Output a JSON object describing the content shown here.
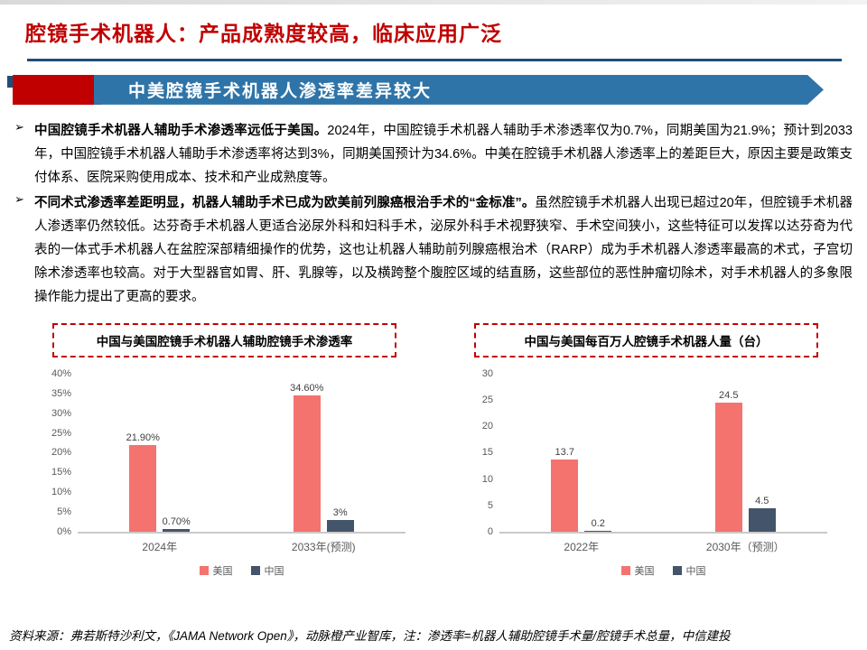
{
  "slide": {
    "title": "腔镜手术机器人：产品成熟度较高，临床应用广泛",
    "banner": "中美腔镜手术机器人渗透率差异较大",
    "bullet_marker": "➢",
    "bullets": [
      {
        "bold": "中国腔镜手术机器人辅助手术渗透率远低于美国。",
        "text": "2024年，中国腔镜手术机器人辅助手术渗透率仅为0.7%，同期美国为21.9%；预计到2033年，中国腔镜手术机器人辅助手术渗透率将达到3%，同期美国预计为34.6%。中美在腔镜手术机器人渗透率上的差距巨大，原因主要是政策支付体系、医院采购使用成本、技术和产业成熟度等。"
      },
      {
        "bold": "不同术式渗透率差距明显，机器人辅助手术已成为欧美前列腺癌根治手术的“金标准”。",
        "text": "虽然腔镜手术机器人出现已超过20年，但腔镜手术机器人渗透率仍然较低。达芬奇手术机器人更适合泌尿外科和妇科手术，泌尿外科手术视野狭窄、手术空间狭小，这些特征可以发挥以达芬奇为代表的一体式手术机器人在盆腔深部精细操作的优势，这也让机器人辅助前列腺癌根治术（RARP）成为手术机器人渗透率最高的术式，子宫切除术渗透率也较高。对于大型器官如胃、肝、乳腺等，以及横跨整个腹腔区域的结直肠，这些部位的恶性肿瘤切除术，对手术机器人的多象限操作能力提出了更高的要求。"
      }
    ],
    "source": "资料来源：弗若斯特沙利文，《JAMA Network Open》，动脉橙产业智库，注：渗透率=机器人辅助腔镜手术量/腔镜手术总量，中信建投"
  },
  "colors": {
    "title_red": "#C00000",
    "banner_blue": "#2E74A8",
    "navy_rule": "#1F4E79",
    "us_bar": "#F4736F",
    "cn_bar": "#44546A"
  },
  "chart_data": [
    {
      "type": "bar",
      "title": "中国与美国腔镜手术机器人辅助腔镜手术渗透率",
      "categories": [
        "2024年",
        "2033年(预测)"
      ],
      "series": [
        {
          "name": "美国",
          "values": [
            21.9,
            34.6
          ],
          "labels": [
            "21.90%",
            "34.60%"
          ],
          "color": "#F4736F"
        },
        {
          "name": "中国",
          "values": [
            0.7,
            3
          ],
          "labels": [
            "0.70%",
            "3%"
          ],
          "color": "#44546A"
        }
      ],
      "ylim": [
        0,
        40
      ],
      "yticks": [
        "0%",
        "5%",
        "10%",
        "15%",
        "20%",
        "25%",
        "30%",
        "35%",
        "40%"
      ],
      "grid": false,
      "legend_position": "bottom"
    },
    {
      "type": "bar",
      "title": "中国与美国每百万人腔镜手术机器人量（台）",
      "categories": [
        "2022年",
        "2030年（预测）"
      ],
      "series": [
        {
          "name": "美国",
          "values": [
            13.7,
            24.5
          ],
          "labels": [
            "13.7",
            "24.5"
          ],
          "color": "#F4736F"
        },
        {
          "name": "中国",
          "values": [
            0.2,
            4.5
          ],
          "labels": [
            "0.2",
            "4.5"
          ],
          "color": "#44546A"
        }
      ],
      "ylim": [
        0,
        30
      ],
      "yticks": [
        "0",
        "5",
        "10",
        "15",
        "20",
        "25",
        "30"
      ],
      "grid": false,
      "legend_position": "bottom"
    }
  ]
}
